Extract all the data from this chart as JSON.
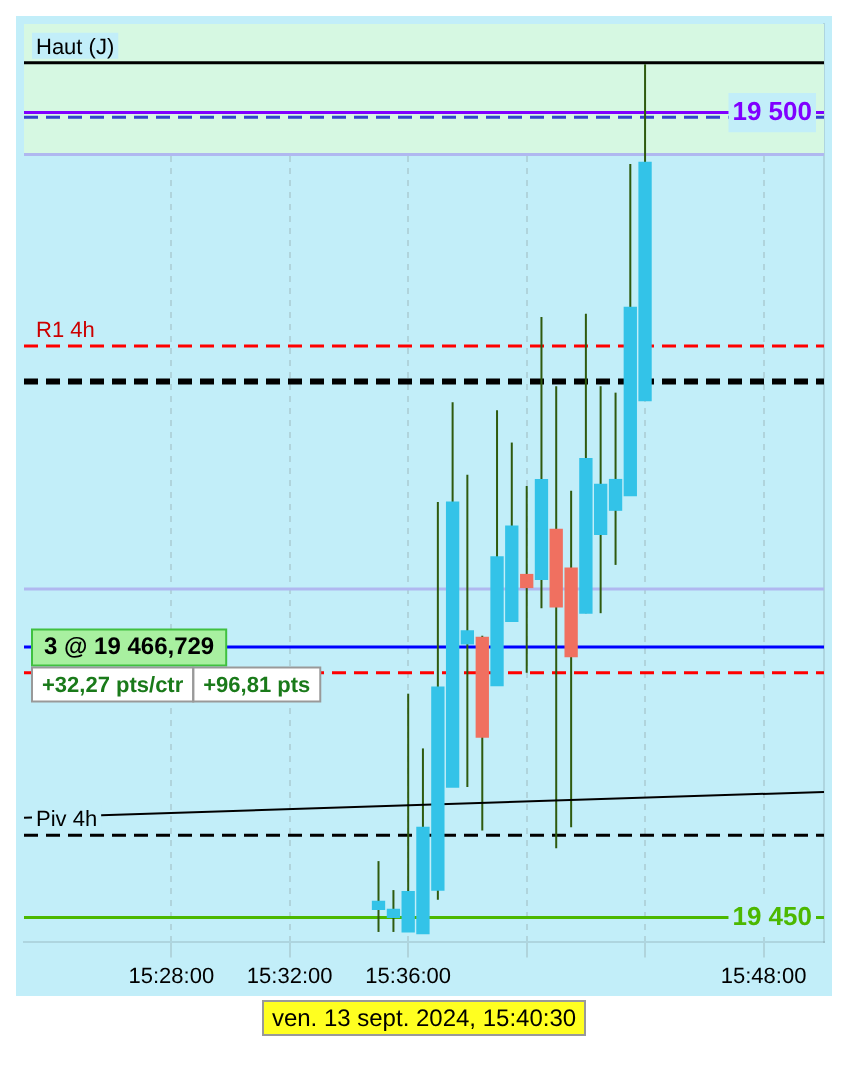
{
  "chart_data": {
    "type": "candlestick",
    "x": [
      15.5833,
      15.5917,
      15.6,
      15.6083,
      15.6167,
      15.625,
      15.6333,
      15.6417,
      15.65,
      15.6583,
      15.6667,
      15.675,
      15.6833,
      15.6917,
      15.7,
      15.7083,
      15.7167,
      15.725,
      15.7333
    ],
    "ohlc": [
      [
        19450.5,
        19453.5,
        19449.1,
        19451
      ],
      [
        19450,
        19451.7,
        19449.1,
        19450.5
      ],
      [
        19449.1,
        19463.9,
        19449.1,
        19451.6
      ],
      [
        19449,
        19460.5,
        19449,
        19455.6
      ],
      [
        19451.7,
        19475.8,
        19451.1,
        19464.3
      ],
      [
        19458.1,
        19482,
        19458.1,
        19475.8
      ],
      [
        19467,
        19477.5,
        19458.1,
        19467.8
      ],
      [
        19467.4,
        19467.5,
        19455.4,
        19461.2
      ],
      [
        19464.4,
        19481.5,
        19464.4,
        19472.4
      ],
      [
        19468.4,
        19479.5,
        19468.4,
        19474.3
      ],
      [
        19471.3,
        19476.8,
        19465.2,
        19470.5
      ],
      [
        19471,
        19487.3,
        19469.2,
        19477.2
      ],
      [
        19474.1,
        19483,
        19454.3,
        19469.3
      ],
      [
        19471.7,
        19476.5,
        19455.6,
        19466.2
      ],
      [
        19468.9,
        19487.5,
        19468.9,
        19478.5
      ],
      [
        19473.8,
        19483,
        19468.9,
        19476.9
      ],
      [
        19475.3,
        19482.6,
        19471.9,
        19477.2
      ],
      [
        19476.2,
        19496.8,
        19476.2,
        19487.9
      ],
      [
        19482.1,
        19503,
        19482.1,
        19496.9
      ]
    ],
    "colors": [
      "#33c3e8",
      "#33c3e8",
      "#33c3e8",
      "#33c3e8",
      "#33c3e8",
      "#33c3e8",
      "#33c3e8",
      "#f07060",
      "#33c3e8",
      "#33c3e8",
      "#f07060",
      "#33c3e8",
      "#f07060",
      "#f07060",
      "#33c3e8",
      "#33c3e8",
      "#33c3e8",
      "#33c3e8",
      "#33c3e8"
    ],
    "series": [
      {
        "type": "line",
        "x": [
          15.3838,
          15.834
        ],
        "values": [
          19456.2,
          19457.8
        ],
        "color": "#000000"
      }
    ],
    "xlim": [
      15.3838,
      15.834
    ],
    "xticks": [
      {
        "value": 15.4667,
        "label": "15:28:00"
      },
      {
        "value": 15.5333,
        "label": "15:32:00"
      },
      {
        "value": 15.6,
        "label": "15:36:00"
      },
      {
        "value": 15.6667,
        "label": null
      },
      {
        "value": 15.7333,
        "label": null
      },
      {
        "value": 15.8,
        "label": "15:48:00"
      }
    ],
    "ylim": [
      19448.5,
      19505.5
    ],
    "yticks": [
      {
        "value": 19500,
        "label": "19 500"
      },
      {
        "value": 19450,
        "label": "19 450"
      }
    ],
    "grid": "x",
    "legend": false,
    "bands": [
      {
        "axis": "y",
        "from": 19497.4,
        "to": 19505.5,
        "color": "#d6f8e2"
      }
    ],
    "ref_lines": [
      {
        "axis": "y",
        "value": 19503.1,
        "label": "Haut (J)",
        "color": "#000000",
        "line_style": "solid"
      },
      {
        "axis": "y",
        "value": 19500,
        "color": "#8000ff",
        "line_style": "solid"
      },
      {
        "axis": "y",
        "value": 19499.7,
        "color": "#3344cc",
        "line_style": "dashed"
      },
      {
        "axis": "y",
        "value": 19497.4,
        "color": "#b0b8f0",
        "line_style": "solid"
      },
      {
        "axis": "y",
        "value": 19485.5,
        "label": "R1 4h",
        "color": "#ff0000",
        "line_style": "dashed"
      },
      {
        "axis": "y",
        "value": 19483.3,
        "color": "#000000",
        "line_style": "dashed"
      },
      {
        "axis": "y",
        "value": 19470.4,
        "color": "#b0b8f0",
        "line_style": "solid"
      },
      {
        "axis": "y",
        "value": 19466.8,
        "color": "#0000ff",
        "line_style": "solid"
      },
      {
        "axis": "y",
        "value": 19465.2,
        "color": "#ff0000",
        "line_style": "dashed"
      },
      {
        "axis": "y",
        "value": 19455.1,
        "label": "Piv 4h",
        "color": "#000000",
        "line_style": "dashed"
      },
      {
        "axis": "y",
        "value": 19450,
        "color": "#4cb800",
        "line_style": "solid"
      }
    ],
    "annotations": [
      "ven. 13 sept. 2024, 15:40:30",
      "3 @ 19 466,729",
      "+32,27 pts/ctr",
      "+96,81 pts"
    ]
  }
}
